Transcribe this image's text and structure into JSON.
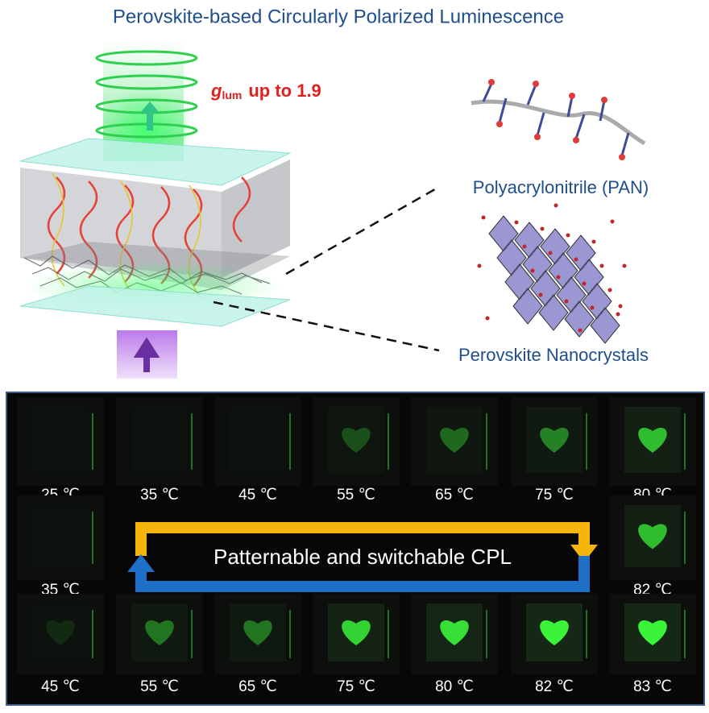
{
  "title": "Perovskite-based Circularly Polarized Luminescence",
  "glum": {
    "symbol": "g",
    "subscript": "lum",
    "text": "up to 1.9"
  },
  "labels": {
    "pan": "Polyacrylonitrile (PAN)",
    "nanocrystals": "Perovskite Nanocrystals"
  },
  "panel": {
    "rows": [
      [
        "25 ℃",
        "35 ℃",
        "45 ℃",
        "55 ℃",
        "65 ℃",
        "75 ℃",
        "80 ℃"
      ],
      [
        "35 ℃",
        "82 ℃"
      ],
      [
        "45 ℃",
        "55 ℃",
        "65 ℃",
        "75 ℃",
        "80 ℃",
        "82 ℃",
        "83 ℃"
      ]
    ],
    "caption": "Patternable and switchable CPL"
  }
}
